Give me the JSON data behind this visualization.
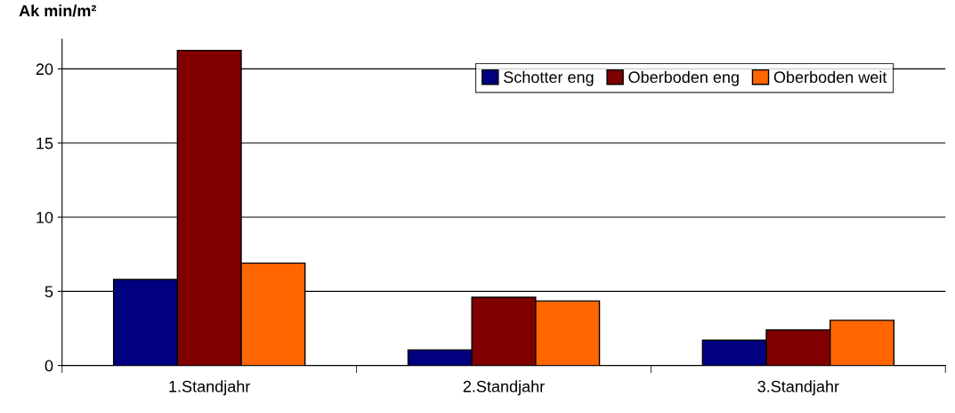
{
  "chart_data": {
    "type": "bar",
    "ylabel": "Ak min/m²",
    "categories": [
      "1.Standjahr",
      "2.Standjahr",
      "3.Standjahr"
    ],
    "series": [
      {
        "name": "Schotter eng",
        "color": "#000080",
        "values": [
          5.8,
          1.05,
          1.7
        ]
      },
      {
        "name": "Oberboden eng",
        "color": "#800000",
        "values": [
          21.25,
          4.6,
          2.4
        ]
      },
      {
        "name": "Oberboden weit",
        "color": "#ff6600",
        "values": [
          6.9,
          4.35,
          3.05
        ]
      }
    ],
    "ylim": [
      0,
      22
    ],
    "yticks": [
      0,
      5,
      10,
      15,
      20
    ],
    "grid": "y",
    "legend": "top right"
  }
}
